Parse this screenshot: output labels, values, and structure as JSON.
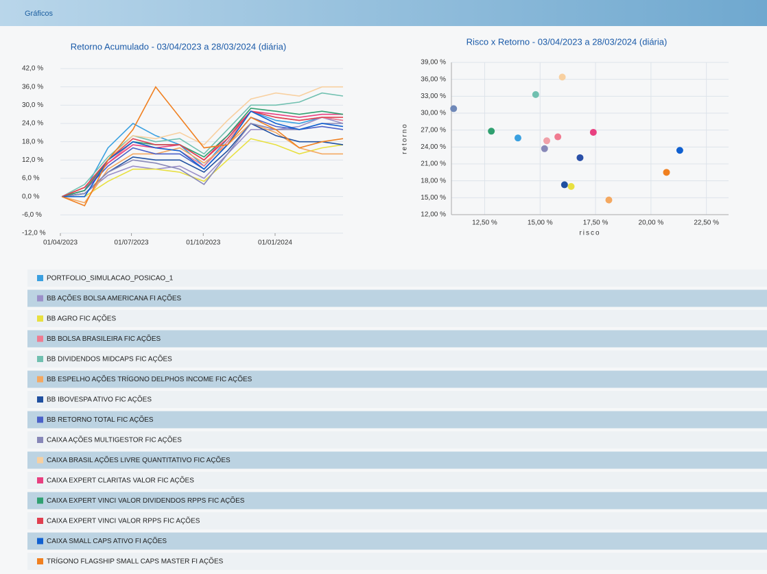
{
  "header": {
    "title": "Gráficos"
  },
  "chart_data": [
    {
      "type": "line",
      "title": "Retorno Acumulado - 03/04/2023 a 28/03/2024 (diária)",
      "x": [
        "03/04/2023",
        "02/05/2023",
        "01/06/2023",
        "03/07/2023",
        "01/08/2023",
        "01/09/2023",
        "02/10/2023",
        "01/11/2023",
        "01/12/2023",
        "02/01/2024",
        "01/02/2024",
        "01/03/2024",
        "28/03/2024"
      ],
      "xlim": [
        "01/04/2023",
        "28/03/2024"
      ],
      "xticks": [
        "01/04/2023",
        "01/07/2023",
        "01/10/2023",
        "01/01/2024"
      ],
      "ylim": [
        -12,
        42
      ],
      "yticks": [
        {
          "value": -12,
          "label": "-12,0 %"
        },
        {
          "value": -6,
          "label": "-6,0 %"
        },
        {
          "value": 0,
          "label": "0,0 %"
        },
        {
          "value": 6,
          "label": "6,0 %"
        },
        {
          "value": 12,
          "label": "12,0 %"
        },
        {
          "value": 18,
          "label": "18,0 %"
        },
        {
          "value": 24,
          "label": "24,0 %"
        },
        {
          "value": 30,
          "label": "30,0 %"
        },
        {
          "value": 36,
          "label": "36,0 %"
        },
        {
          "value": 42,
          "label": "42,0 %"
        }
      ],
      "grid": true,
      "series": [
        {
          "name": "PORTFOLIO_SIMULACAO_POSICAO_1",
          "color": "#3aa0e0",
          "values": [
            0,
            2,
            16,
            24,
            20,
            17,
            10,
            19,
            28,
            25,
            24,
            26,
            25
          ]
        },
        {
          "name": "BB AÇÕES BOLSA AMERICANA FI AÇÕES",
          "color": "#9a8fc8",
          "values": [
            0,
            1,
            7,
            10,
            9,
            10,
            6,
            14,
            22,
            22,
            23,
            26,
            24
          ]
        },
        {
          "name": "BB AGRO FIC AÇÕES",
          "color": "#e8e040",
          "values": [
            0,
            0,
            5,
            9,
            9,
            8,
            5,
            12,
            19,
            17,
            14,
            16,
            17
          ]
        },
        {
          "name": "BB BOLSA BRASILEIRA FIC AÇÕES",
          "color": "#f07a90",
          "values": [
            0,
            3,
            11,
            18,
            16,
            15,
            10,
            18,
            28,
            26,
            25,
            26,
            25
          ]
        },
        {
          "name": "BB DIVIDENDOS MIDCAPS FIC AÇÕES",
          "color": "#70c0b0",
          "values": [
            0,
            4,
            13,
            20,
            18,
            19,
            14,
            22,
            30,
            30,
            31,
            34,
            33
          ]
        },
        {
          "name": "BB ESPELHO AÇÕES TRÍGONO DELPHOS INCOME FIC AÇÕES",
          "color": "#f4a860",
          "values": [
            0,
            -2,
            9,
            14,
            14,
            16,
            11,
            17,
            24,
            21,
            16,
            14,
            14
          ]
        },
        {
          "name": "BB IBOVESPA ATIVO FIC AÇÕES",
          "color": "#2050a0",
          "values": [
            0,
            1,
            8,
            13,
            12,
            12,
            8,
            15,
            24,
            20,
            18,
            18,
            17
          ]
        },
        {
          "name": "BB RETORNO TOTAL FIC AÇÕES",
          "color": "#4a60c8",
          "values": [
            0,
            2,
            10,
            16,
            14,
            14,
            9,
            17,
            26,
            23,
            22,
            23,
            22
          ]
        },
        {
          "name": "CAIXA AÇÕES MULTIGESTOR FIC AÇÕES",
          "color": "#8888b8",
          "values": [
            0,
            1,
            8,
            12,
            11,
            9,
            4,
            14,
            24,
            22,
            22,
            24,
            24
          ]
        },
        {
          "name": "CAIXA BRASIL AÇÕES LIVRE QUANTITATIVO FIC AÇÕES",
          "color": "#f8d0a0",
          "values": [
            0,
            3,
            12,
            20,
            19,
            21,
            17,
            25,
            32,
            34,
            33,
            36,
            36
          ]
        },
        {
          "name": "CAIXA EXPERT CLARITAS VALOR FIC AÇÕES",
          "color": "#e84080",
          "values": [
            0,
            2,
            11,
            17,
            16,
            17,
            12,
            20,
            28,
            27,
            26,
            27,
            27
          ]
        },
        {
          "name": "CAIXA EXPERT VINCI VALOR DIVIDENDOS RPPS FIC AÇÕES",
          "color": "#30a070",
          "values": [
            0,
            2,
            12,
            18,
            17,
            17,
            13,
            20,
            29,
            28,
            27,
            28,
            27
          ]
        },
        {
          "name": "CAIXA EXPERT VINCI VALOR RPPS FIC AÇÕES",
          "color": "#e04050",
          "values": [
            0,
            3,
            12,
            19,
            17,
            17,
            12,
            19,
            28,
            26,
            25,
            26,
            26
          ]
        },
        {
          "name": "CAIXA SMALL CAPS ATIVO FI AÇÕES",
          "color": "#1060d0",
          "values": [
            0,
            0,
            12,
            18,
            16,
            15,
            9,
            17,
            28,
            24,
            22,
            24,
            23
          ]
        },
        {
          "name": "TRÍGONO FLAGSHIP SMALL CAPS MASTER FI AÇÕES",
          "color": "#f08020",
          "values": [
            0,
            -3,
            12,
            22,
            36,
            26,
            16,
            17,
            26,
            22,
            16,
            18,
            19
          ]
        }
      ]
    },
    {
      "type": "scatter",
      "title": "Risco x Retorno - 03/04/2023 a 28/03/2024 (diária)",
      "x_label": "risco",
      "y_label": "retorno",
      "xlim": [
        11,
        23.5
      ],
      "xticks": [
        {
          "value": 12.5,
          "label": "12,50 %"
        },
        {
          "value": 15,
          "label": "15,00 %"
        },
        {
          "value": 17.5,
          "label": "17,50 %"
        },
        {
          "value": 20,
          "label": "20,00 %"
        },
        {
          "value": 22.5,
          "label": "22,50 %"
        }
      ],
      "ylim": [
        12,
        39
      ],
      "yticks": [
        {
          "value": 12,
          "label": "12,00 %"
        },
        {
          "value": 15,
          "label": "15,00 %"
        },
        {
          "value": 18,
          "label": "18,00 %"
        },
        {
          "value": 21,
          "label": "21,00 %"
        },
        {
          "value": 24,
          "label": "24,00 %"
        },
        {
          "value": 27,
          "label": "27,00 %"
        },
        {
          "value": 30,
          "label": "30,00 %"
        },
        {
          "value": 33,
          "label": "33,00 %"
        },
        {
          "value": 36,
          "label": "36,00 %"
        },
        {
          "value": 39,
          "label": "39,00 %"
        }
      ],
      "grid": true,
      "points": [
        {
          "x": 11.1,
          "y": 30.8,
          "color": "#6f88b8"
        },
        {
          "x": 12.8,
          "y": 26.8,
          "color": "#30a070"
        },
        {
          "x": 14.0,
          "y": 25.6,
          "color": "#3aa0e0"
        },
        {
          "x": 14.8,
          "y": 33.3,
          "color": "#70c0b0"
        },
        {
          "x": 15.2,
          "y": 23.7,
          "color": "#8888b8"
        },
        {
          "x": 15.3,
          "y": 25.1,
          "color": "#f0a0a8"
        },
        {
          "x": 15.8,
          "y": 25.8,
          "color": "#f07a90"
        },
        {
          "x": 16.0,
          "y": 36.4,
          "color": "#f8d0a0"
        },
        {
          "x": 16.1,
          "y": 17.3,
          "color": "#2050a0"
        },
        {
          "x": 16.4,
          "y": 17.0,
          "color": "#e8e040"
        },
        {
          "x": 16.8,
          "y": 22.1,
          "color": "#2a50a8"
        },
        {
          "x": 17.4,
          "y": 26.6,
          "color": "#e84080"
        },
        {
          "x": 18.1,
          "y": 14.6,
          "color": "#f4a860"
        },
        {
          "x": 20.7,
          "y": 19.5,
          "color": "#f08020"
        },
        {
          "x": 21.3,
          "y": 23.4,
          "color": "#1060d0"
        }
      ]
    }
  ]
}
